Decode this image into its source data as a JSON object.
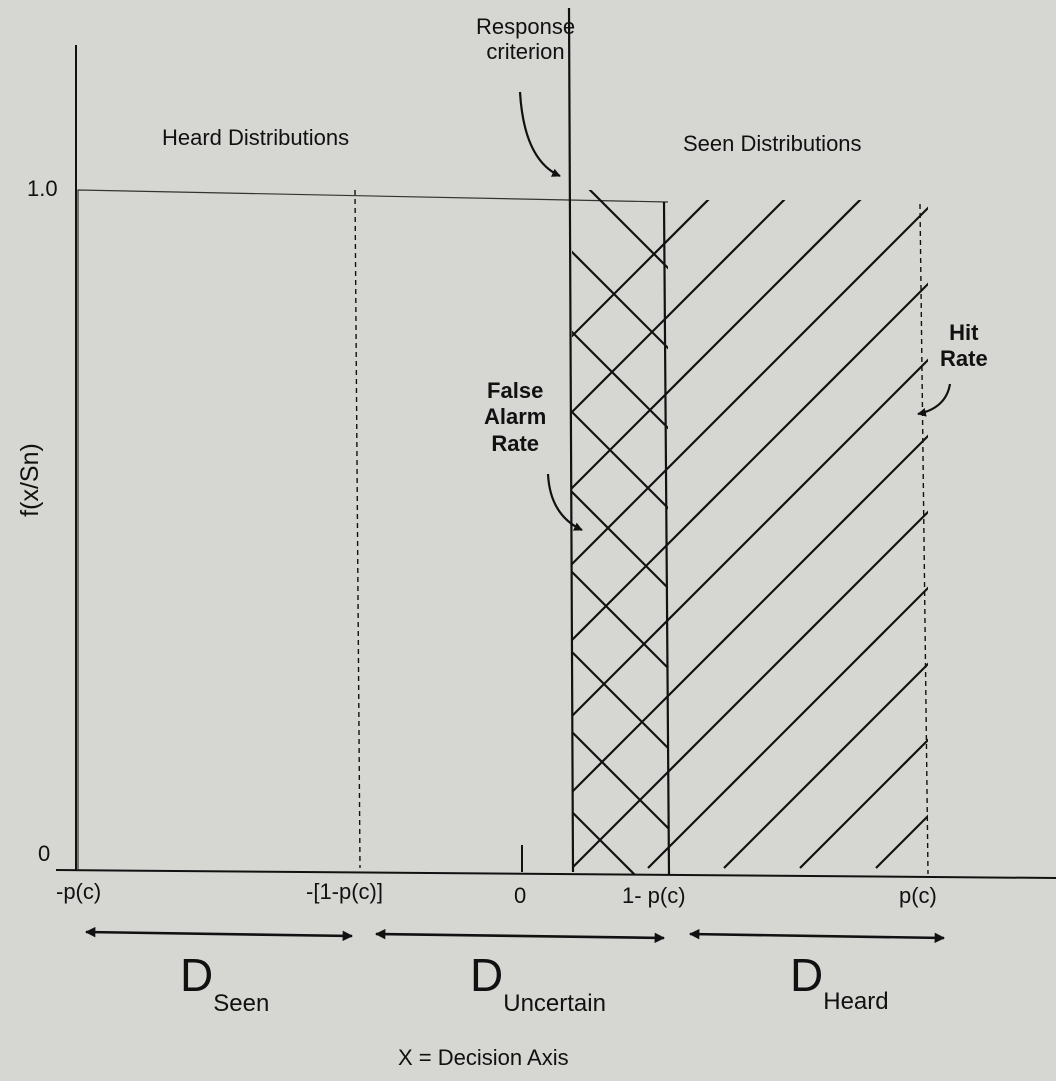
{
  "y_axis": {
    "label": "f(x/Sn)",
    "tick_top": "1.0",
    "tick_bottom": "0"
  },
  "x_axis": {
    "title": "X = Decision Axis",
    "ticks": [
      "-p(c)",
      "-[1-p(c)]",
      "0",
      "1- p(c)",
      "p(c)"
    ]
  },
  "regions": {
    "heard_distributions": "Heard Distributions",
    "seen_distributions": "Seen Distributions"
  },
  "annotations": {
    "response_criterion": [
      "Response",
      "criterion"
    ],
    "false_alarm_rate": [
      "False",
      "Alarm",
      "Rate"
    ],
    "hit_rate": [
      "Hit",
      "Rate"
    ]
  },
  "ranges": {
    "seen": {
      "main": "D",
      "sub": "Seen"
    },
    "uncertain": {
      "main": "D",
      "sub": "Uncertain"
    },
    "heard": {
      "main": "D",
      "sub": "Heard"
    }
  }
}
